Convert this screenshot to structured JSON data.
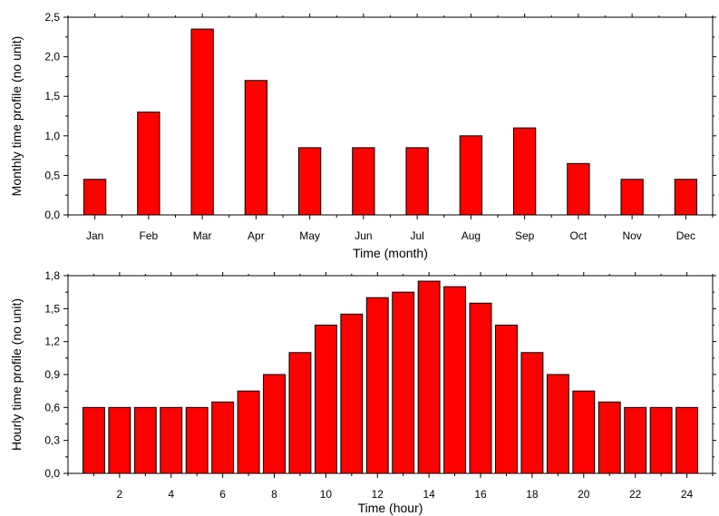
{
  "chart_data": [
    {
      "type": "bar",
      "xlabel": "Time (month)",
      "ylabel": "Monthly time profile (no unit)",
      "categories": [
        "Jan",
        "Feb",
        "Mar",
        "Apr",
        "May",
        "Jun",
        "Jul",
        "Aug",
        "Sep",
        "Oct",
        "Nov",
        "Dec"
      ],
      "values": [
        0.45,
        1.3,
        2.35,
        1.7,
        0.85,
        0.85,
        0.85,
        1.0,
        1.1,
        0.65,
        0.45,
        0.45
      ],
      "ylim": [
        0,
        2.5
      ],
      "yticks": [
        "0,0",
        "0,5",
        "1,0",
        "1,5",
        "2,0",
        "2,5"
      ],
      "bar_color": "#ff0000",
      "grid": false
    },
    {
      "type": "bar",
      "xlabel": "Time (hour)",
      "ylabel": "Hourly time profile (no unit)",
      "x": [
        1,
        2,
        3,
        4,
        5,
        6,
        7,
        8,
        9,
        10,
        11,
        12,
        13,
        14,
        15,
        16,
        17,
        18,
        19,
        20,
        21,
        22,
        23,
        24
      ],
      "values": [
        0.6,
        0.6,
        0.6,
        0.6,
        0.6,
        0.65,
        0.75,
        0.9,
        1.1,
        1.35,
        1.45,
        1.6,
        1.65,
        1.75,
        1.7,
        1.55,
        1.35,
        1.1,
        0.9,
        0.75,
        0.65,
        0.6,
        0.6,
        0.6
      ],
      "xlim": [
        0,
        25
      ],
      "xticks": [
        "2",
        "4",
        "6",
        "8",
        "10",
        "12",
        "14",
        "16",
        "18",
        "20",
        "22",
        "24"
      ],
      "ylim": [
        0,
        1.8
      ],
      "yticks": [
        "0,0",
        "0,3",
        "0,6",
        "0,9",
        "1,2",
        "1,5",
        "1,8"
      ],
      "bar_color": "#ff0000",
      "grid": false
    }
  ]
}
